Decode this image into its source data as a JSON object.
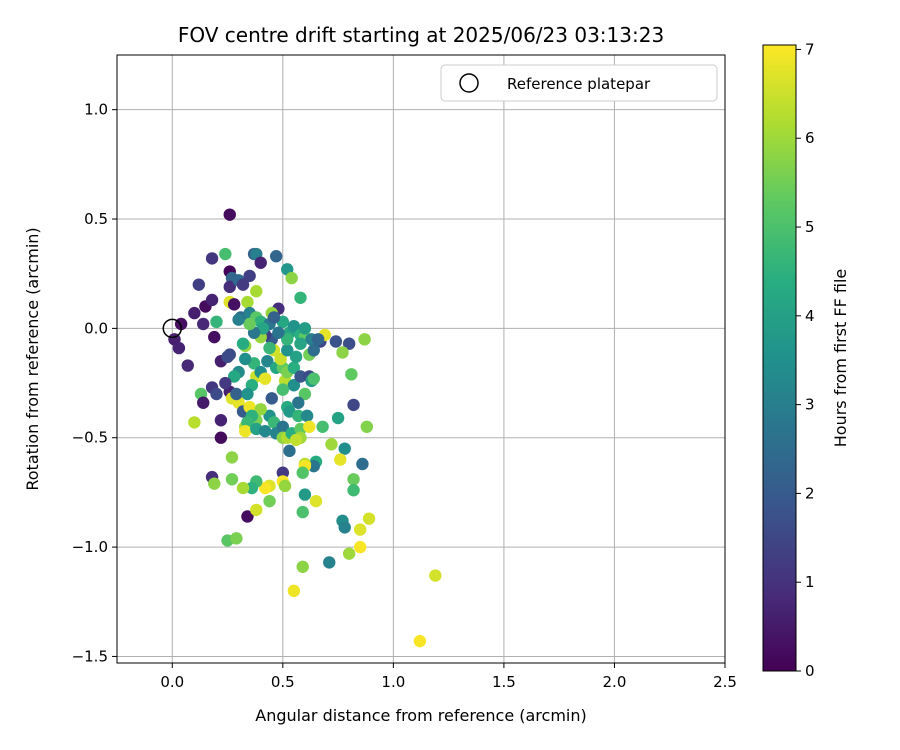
{
  "chart_data": {
    "type": "scatter",
    "title": "FOV centre drift starting at 2025/06/23 03:13:23",
    "xlabel": "Angular distance from reference (arcmin)",
    "ylabel": "Rotation from reference (arcmin)",
    "xlim": [
      -0.25,
      2.5
    ],
    "ylim": [
      -1.53,
      1.25
    ],
    "xticks": [
      0.0,
      0.5,
      1.0,
      1.5,
      2.0,
      2.5
    ],
    "xtick_labels": [
      "0.0",
      "0.5",
      "1.0",
      "1.5",
      "2.0",
      "2.5"
    ],
    "yticks": [
      -1.5,
      -1.0,
      -0.5,
      0.0,
      0.5,
      1.0
    ],
    "ytick_labels": [
      "−1.5",
      "−1.0",
      "−0.5",
      "0.0",
      "0.5",
      "1.0"
    ],
    "grid": true,
    "legend": {
      "position": "top-right",
      "entries": [
        {
          "label": "Reference platepar",
          "marker": "open-circle"
        }
      ]
    },
    "reference_point": {
      "x": 0.0,
      "y": 0.0
    },
    "colorbar": {
      "label": "Hours from first FF file",
      "colormap": "viridis",
      "range": [
        0,
        7.05
      ],
      "ticks": [
        0,
        1,
        2,
        3,
        4,
        5,
        6,
        7
      ],
      "tick_labels": [
        "0",
        "1",
        "2",
        "3",
        "4",
        "5",
        "6",
        "7"
      ]
    },
    "points": [
      {
        "x": 0.26,
        "y": 0.52,
        "c": 0.2
      },
      {
        "x": 0.04,
        "y": 0.02,
        "c": 0.3
      },
      {
        "x": 0.01,
        "y": -0.05,
        "c": 0.6
      },
      {
        "x": 0.03,
        "y": -0.09,
        "c": 0.7
      },
      {
        "x": 0.07,
        "y": -0.17,
        "c": 0.8
      },
      {
        "x": 0.12,
        "y": 0.2,
        "c": 1.3
      },
      {
        "x": 0.18,
        "y": 0.32,
        "c": 1.1
      },
      {
        "x": 0.1,
        "y": 0.07,
        "c": 0.6
      },
      {
        "x": 0.14,
        "y": 0.02,
        "c": 0.8
      },
      {
        "x": 0.15,
        "y": 0.1,
        "c": 0.2
      },
      {
        "x": 0.18,
        "y": 0.13,
        "c": 0.7
      },
      {
        "x": 0.19,
        "y": -0.04,
        "c": 0.3
      },
      {
        "x": 0.22,
        "y": -0.15,
        "c": 0.6
      },
      {
        "x": 0.2,
        "y": 0.03,
        "c": 4.6
      },
      {
        "x": 0.24,
        "y": 0.34,
        "c": 4.9
      },
      {
        "x": 0.26,
        "y": 0.26,
        "c": 0.1
      },
      {
        "x": 0.27,
        "y": 0.23,
        "c": 2.3
      },
      {
        "x": 0.26,
        "y": 0.19,
        "c": 0.9
      },
      {
        "x": 0.3,
        "y": 0.22,
        "c": 2.4
      },
      {
        "x": 0.32,
        "y": 0.2,
        "c": 1.2
      },
      {
        "x": 0.35,
        "y": 0.24,
        "c": 1.3
      },
      {
        "x": 0.37,
        "y": 0.34,
        "c": 2.1
      },
      {
        "x": 0.38,
        "y": 0.34,
        "c": 3.0
      },
      {
        "x": 0.4,
        "y": 0.3,
        "c": 0.7
      },
      {
        "x": 0.47,
        "y": 0.33,
        "c": 2.3
      },
      {
        "x": 0.52,
        "y": 0.27,
        "c": 3.7
      },
      {
        "x": 0.54,
        "y": 0.23,
        "c": 5.8
      },
      {
        "x": 0.58,
        "y": 0.14,
        "c": 4.6
      },
      {
        "x": 0.48,
        "y": 0.09,
        "c": 0.9
      },
      {
        "x": 0.34,
        "y": 0.12,
        "c": 6.1
      },
      {
        "x": 0.38,
        "y": 0.17,
        "c": 6.1
      },
      {
        "x": 0.26,
        "y": 0.12,
        "c": 6.7
      },
      {
        "x": 0.28,
        "y": 0.11,
        "c": 0.3
      },
      {
        "x": 0.31,
        "y": 0.05,
        "c": 2.4
      },
      {
        "x": 0.35,
        "y": 0.07,
        "c": 3.1
      },
      {
        "x": 0.38,
        "y": 0.05,
        "c": 5.2
      },
      {
        "x": 0.4,
        "y": 0.03,
        "c": 4.5
      },
      {
        "x": 0.45,
        "y": 0.07,
        "c": 5.9
      },
      {
        "x": 0.44,
        "y": 0.02,
        "c": 2.8
      },
      {
        "x": 0.5,
        "y": 0.03,
        "c": 4.2
      },
      {
        "x": 0.53,
        "y": -0.02,
        "c": 4.1
      },
      {
        "x": 0.55,
        "y": 0.01,
        "c": 3.6
      },
      {
        "x": 0.58,
        "y": -0.03,
        "c": 4.4
      },
      {
        "x": 0.6,
        "y": -0.04,
        "c": 5.3
      },
      {
        "x": 0.63,
        "y": -0.05,
        "c": 3.0
      },
      {
        "x": 0.67,
        "y": -0.06,
        "c": 1.5
      },
      {
        "x": 0.69,
        "y": -0.03,
        "c": 6.8
      },
      {
        "x": 0.74,
        "y": -0.06,
        "c": 1.8
      },
      {
        "x": 0.8,
        "y": -0.07,
        "c": 1.7
      },
      {
        "x": 0.87,
        "y": -0.05,
        "c": 5.8
      },
      {
        "x": 0.77,
        "y": -0.11,
        "c": 5.8
      },
      {
        "x": 0.62,
        "y": -0.12,
        "c": 5.5
      },
      {
        "x": 0.58,
        "y": -0.07,
        "c": 4.1
      },
      {
        "x": 0.46,
        "y": -0.1,
        "c": 6.6
      },
      {
        "x": 0.45,
        "y": -0.05,
        "c": 2.0
      },
      {
        "x": 0.42,
        "y": -0.03,
        "c": 1.3
      },
      {
        "x": 0.4,
        "y": -0.04,
        "c": 5.9
      },
      {
        "x": 0.33,
        "y": -0.08,
        "c": 5.9
      },
      {
        "x": 0.26,
        "y": -0.12,
        "c": 1.6
      },
      {
        "x": 0.25,
        "y": -0.13,
        "c": 1.6
      },
      {
        "x": 0.3,
        "y": -0.2,
        "c": 3.4
      },
      {
        "x": 0.28,
        "y": -0.22,
        "c": 4.2
      },
      {
        "x": 0.26,
        "y": -0.29,
        "c": 0.7
      },
      {
        "x": 0.24,
        "y": -0.25,
        "c": 1.2
      },
      {
        "x": 0.27,
        "y": -0.32,
        "c": 6.7
      },
      {
        "x": 0.3,
        "y": -0.34,
        "c": 6.8
      },
      {
        "x": 0.32,
        "y": -0.38,
        "c": 2.0
      },
      {
        "x": 0.33,
        "y": -0.45,
        "c": 6.1
      },
      {
        "x": 0.35,
        "y": -0.36,
        "c": 6.9
      },
      {
        "x": 0.37,
        "y": -0.16,
        "c": 4.6
      },
      {
        "x": 0.38,
        "y": -0.22,
        "c": 6.5
      },
      {
        "x": 0.4,
        "y": -0.2,
        "c": 3.5
      },
      {
        "x": 0.43,
        "y": -0.15,
        "c": 3.2
      },
      {
        "x": 0.47,
        "y": -0.18,
        "c": 4.2
      },
      {
        "x": 0.5,
        "y": -0.18,
        "c": 5.3
      },
      {
        "x": 0.51,
        "y": -0.24,
        "c": 6.3
      },
      {
        "x": 0.52,
        "y": -0.2,
        "c": 5.6
      },
      {
        "x": 0.55,
        "y": -0.18,
        "c": 4.4
      },
      {
        "x": 0.55,
        "y": -0.26,
        "c": 3.5
      },
      {
        "x": 0.58,
        "y": -0.22,
        "c": 1.9
      },
      {
        "x": 0.62,
        "y": -0.22,
        "c": 1.6
      },
      {
        "x": 0.63,
        "y": -0.24,
        "c": 3.8
      },
      {
        "x": 0.64,
        "y": -0.23,
        "c": 5.0
      },
      {
        "x": 0.6,
        "y": -0.3,
        "c": 5.2
      },
      {
        "x": 0.57,
        "y": -0.34,
        "c": 2.7
      },
      {
        "x": 0.52,
        "y": -0.36,
        "c": 4.3
      },
      {
        "x": 0.5,
        "y": -0.28,
        "c": 4.9
      },
      {
        "x": 0.45,
        "y": -0.32,
        "c": 2.0
      },
      {
        "x": 0.44,
        "y": -0.4,
        "c": 3.6
      },
      {
        "x": 0.4,
        "y": -0.37,
        "c": 5.9
      },
      {
        "x": 0.38,
        "y": -0.42,
        "c": 5.6
      },
      {
        "x": 0.36,
        "y": -0.4,
        "c": 4.5
      },
      {
        "x": 0.34,
        "y": -0.43,
        "c": 4.7
      },
      {
        "x": 0.33,
        "y": -0.47,
        "c": 6.9
      },
      {
        "x": 0.38,
        "y": -0.46,
        "c": 4.0
      },
      {
        "x": 0.42,
        "y": -0.47,
        "c": 3.3
      },
      {
        "x": 0.46,
        "y": -0.43,
        "c": 4.7
      },
      {
        "x": 0.47,
        "y": -0.48,
        "c": 3.1
      },
      {
        "x": 0.5,
        "y": -0.45,
        "c": 2.7
      },
      {
        "x": 0.5,
        "y": -0.5,
        "c": 5.8
      },
      {
        "x": 0.52,
        "y": -0.5,
        "c": 6.2
      },
      {
        "x": 0.53,
        "y": -0.38,
        "c": 3.8
      },
      {
        "x": 0.54,
        "y": -0.48,
        "c": 4.4
      },
      {
        "x": 0.57,
        "y": -0.4,
        "c": 4.6
      },
      {
        "x": 0.58,
        "y": -0.46,
        "c": 5.3
      },
      {
        "x": 0.58,
        "y": -0.5,
        "c": 6.0
      },
      {
        "x": 0.61,
        "y": -0.4,
        "c": 3.3
      },
      {
        "x": 0.62,
        "y": -0.45,
        "c": 6.9
      },
      {
        "x": 0.68,
        "y": -0.45,
        "c": 4.9
      },
      {
        "x": 0.72,
        "y": -0.53,
        "c": 6.0
      },
      {
        "x": 0.75,
        "y": -0.41,
        "c": 4.0
      },
      {
        "x": 0.78,
        "y": -0.55,
        "c": 3.5
      },
      {
        "x": 0.76,
        "y": -0.6,
        "c": 6.8
      },
      {
        "x": 0.82,
        "y": -0.35,
        "c": 1.5
      },
      {
        "x": 0.81,
        "y": -0.21,
        "c": 5.3
      },
      {
        "x": 0.88,
        "y": -0.45,
        "c": 5.7
      },
      {
        "x": 0.86,
        "y": -0.62,
        "c": 2.5
      },
      {
        "x": 0.65,
        "y": -0.61,
        "c": 4.3
      },
      {
        "x": 0.64,
        "y": -0.63,
        "c": 2.7
      },
      {
        "x": 0.6,
        "y": -0.62,
        "c": 6.3
      },
      {
        "x": 0.6,
        "y": -0.63,
        "c": 7.0
      },
      {
        "x": 0.59,
        "y": -0.66,
        "c": 5.1
      },
      {
        "x": 0.53,
        "y": -0.56,
        "c": 2.6
      },
      {
        "x": 0.5,
        "y": -0.66,
        "c": 1.2
      },
      {
        "x": 0.5,
        "y": -0.7,
        "c": 7.0
      },
      {
        "x": 0.51,
        "y": -0.72,
        "c": 5.9
      },
      {
        "x": 0.44,
        "y": -0.72,
        "c": 6.7
      },
      {
        "x": 0.42,
        "y": -0.73,
        "c": 7.0
      },
      {
        "x": 0.38,
        "y": -0.7,
        "c": 4.8
      },
      {
        "x": 0.36,
        "y": -0.73,
        "c": 4.5
      },
      {
        "x": 0.32,
        "y": -0.73,
        "c": 6.1
      },
      {
        "x": 0.34,
        "y": -0.86,
        "c": 0.2
      },
      {
        "x": 0.38,
        "y": -0.83,
        "c": 6.6
      },
      {
        "x": 0.44,
        "y": -0.79,
        "c": 5.5
      },
      {
        "x": 0.27,
        "y": -0.59,
        "c": 5.8
      },
      {
        "x": 0.27,
        "y": -0.69,
        "c": 5.5
      },
      {
        "x": 0.18,
        "y": -0.68,
        "c": 0.9
      },
      {
        "x": 0.19,
        "y": -0.71,
        "c": 5.8
      },
      {
        "x": 0.1,
        "y": -0.43,
        "c": 6.3
      },
      {
        "x": 0.13,
        "y": -0.3,
        "c": 5.2
      },
      {
        "x": 0.14,
        "y": -0.34,
        "c": 0.5
      },
      {
        "x": 0.18,
        "y": -0.27,
        "c": 1.1
      },
      {
        "x": 0.2,
        "y": -0.3,
        "c": 1.6
      },
      {
        "x": 0.22,
        "y": -0.42,
        "c": 0.7
      },
      {
        "x": 0.22,
        "y": -0.5,
        "c": 0.2
      },
      {
        "x": 0.25,
        "y": -0.97,
        "c": 5.2
      },
      {
        "x": 0.29,
        "y": -0.96,
        "c": 5.6
      },
      {
        "x": 0.55,
        "y": -1.2,
        "c": 6.9
      },
      {
        "x": 0.59,
        "y": -1.09,
        "c": 5.8
      },
      {
        "x": 0.6,
        "y": -0.76,
        "c": 3.8
      },
      {
        "x": 0.59,
        "y": -0.84,
        "c": 5.0
      },
      {
        "x": 0.65,
        "y": -0.79,
        "c": 6.7
      },
      {
        "x": 0.71,
        "y": -1.07,
        "c": 3.1
      },
      {
        "x": 0.77,
        "y": -0.88,
        "c": 3.4
      },
      {
        "x": 0.78,
        "y": -0.91,
        "c": 3.1
      },
      {
        "x": 0.8,
        "y": -1.03,
        "c": 6.0
      },
      {
        "x": 0.82,
        "y": -0.69,
        "c": 5.4
      },
      {
        "x": 0.82,
        "y": -0.74,
        "c": 4.8
      },
      {
        "x": 0.85,
        "y": -0.92,
        "c": 6.7
      },
      {
        "x": 0.85,
        "y": -1.0,
        "c": 7.0
      },
      {
        "x": 0.89,
        "y": -0.87,
        "c": 6.6
      },
      {
        "x": 1.19,
        "y": -1.13,
        "c": 6.6
      },
      {
        "x": 1.12,
        "y": -1.43,
        "c": 7.0
      },
      {
        "x": 0.42,
        "y": -0.23,
        "c": 6.8
      },
      {
        "x": 0.36,
        "y": -0.26,
        "c": 4.4
      },
      {
        "x": 0.33,
        "y": -0.14,
        "c": 3.5
      },
      {
        "x": 0.49,
        "y": -0.14,
        "c": 6.5
      },
      {
        "x": 0.52,
        "y": -0.1,
        "c": 3.6
      },
      {
        "x": 0.56,
        "y": -0.13,
        "c": 4.0
      },
      {
        "x": 0.64,
        "y": -0.1,
        "c": 2.5
      },
      {
        "x": 0.6,
        "y": 0.0,
        "c": 3.9
      },
      {
        "x": 0.52,
        "y": -0.05,
        "c": 4.6
      },
      {
        "x": 0.48,
        "y": -0.02,
        "c": 2.7
      },
      {
        "x": 0.46,
        "y": 0.05,
        "c": 2.2
      },
      {
        "x": 0.44,
        "y": -0.09,
        "c": 4.7
      },
      {
        "x": 0.41,
        "y": 0.0,
        "c": 4.1
      },
      {
        "x": 0.37,
        "y": -0.02,
        "c": 2.8
      },
      {
        "x": 0.35,
        "y": 0.02,
        "c": 5.4
      },
      {
        "x": 0.32,
        "y": -0.07,
        "c": 4.3
      },
      {
        "x": 0.3,
        "y": 0.04,
        "c": 3.0
      },
      {
        "x": 0.29,
        "y": -0.3,
        "c": 2.2
      },
      {
        "x": 0.34,
        "y": -0.3,
        "c": 3.6
      },
      {
        "x": 0.56,
        "y": -0.51,
        "c": 6.4
      },
      {
        "x": 0.66,
        "y": -0.05,
        "c": 2.3
      }
    ]
  }
}
